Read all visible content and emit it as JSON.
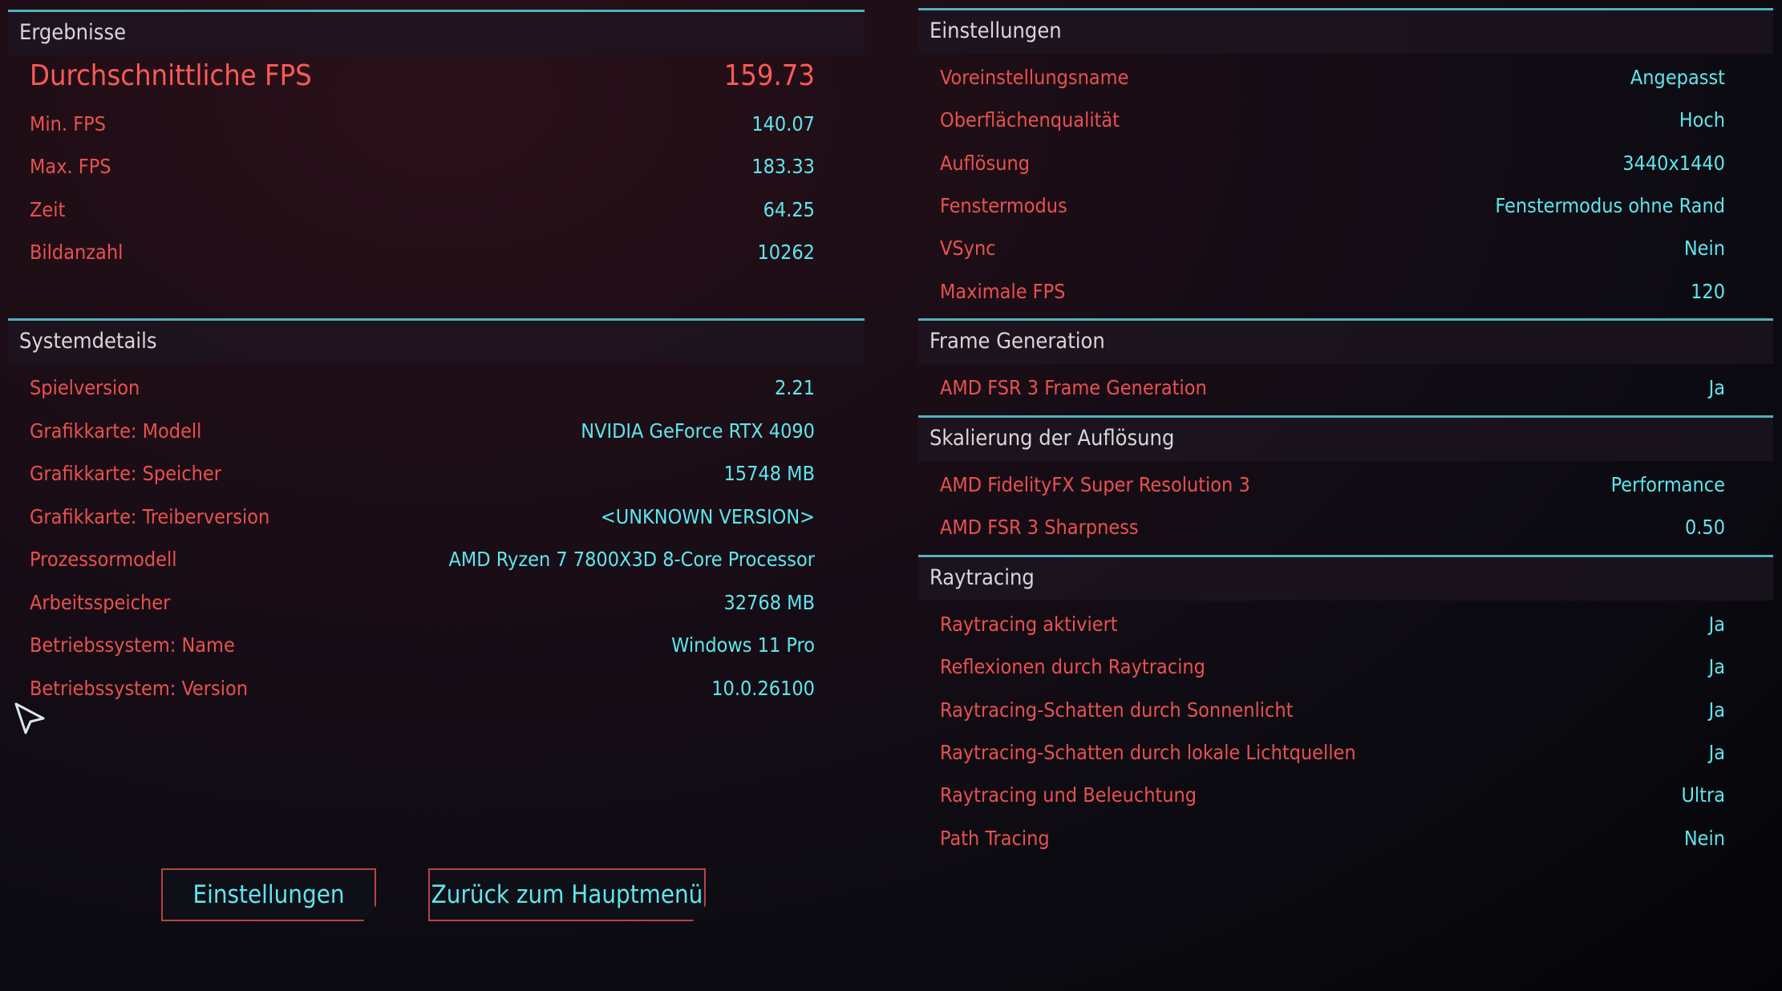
{
  "colors": {
    "label": "#e8514f",
    "value": "#5ee6ec",
    "accent_line": "#4fb3bd",
    "highlight": "#ff5a55"
  },
  "left": [
    {
      "title": "Ergebnisse",
      "big": {
        "label": "Durchschnittliche FPS",
        "value": "159.73"
      },
      "rows": [
        {
          "label": "Min. FPS",
          "value": "140.07"
        },
        {
          "label": "Max. FPS",
          "value": "183.33"
        },
        {
          "label": "Zeit",
          "value": "64.25"
        },
        {
          "label": "Bildanzahl",
          "value": "10262"
        }
      ]
    },
    {
      "title": "Systemdetails",
      "rows": [
        {
          "label": "Spielversion",
          "value": "2.21"
        },
        {
          "label": "Grafikkarte: Modell",
          "value": "NVIDIA GeForce RTX 4090"
        },
        {
          "label": "Grafikkarte: Speicher",
          "value": "15748 MB"
        },
        {
          "label": "Grafikkarte: Treiberversion",
          "value": "<UNKNOWN VERSION>"
        },
        {
          "label": "Prozessormodell",
          "value": "AMD Ryzen 7 7800X3D 8-Core Processor"
        },
        {
          "label": "Arbeitsspeicher",
          "value": "32768 MB"
        },
        {
          "label": "Betriebssystem: Name",
          "value": "Windows 11 Pro"
        },
        {
          "label": "Betriebssystem: Version",
          "value": "10.0.26100"
        }
      ]
    }
  ],
  "right": [
    {
      "title": "Einstellungen",
      "rows": [
        {
          "label": "Voreinstellungsname",
          "value": "Angepasst"
        },
        {
          "label": "Oberflächenqualität",
          "value": "Hoch"
        },
        {
          "label": "Auflösung",
          "value": "3440x1440"
        },
        {
          "label": "Fenstermodus",
          "value": "Fenstermodus ohne Rand"
        },
        {
          "label": "VSync",
          "value": "Nein"
        },
        {
          "label": "Maximale FPS",
          "value": "120"
        }
      ]
    },
    {
      "title": "Frame Generation",
      "rows": [
        {
          "label": "AMD FSR 3 Frame Generation",
          "value": "Ja"
        }
      ]
    },
    {
      "title": "Skalierung der Auflösung",
      "rows": [
        {
          "label": "AMD FidelityFX Super Resolution 3",
          "value": "Performance"
        },
        {
          "label": "AMD FSR 3 Sharpness",
          "value": "0.50"
        }
      ]
    },
    {
      "title": "Raytracing",
      "rows": [
        {
          "label": "Raytracing aktiviert",
          "value": "Ja"
        },
        {
          "label": "Reflexionen durch Raytracing",
          "value": "Ja"
        },
        {
          "label": "Raytracing-Schatten durch Sonnenlicht",
          "value": "Ja"
        },
        {
          "label": "Raytracing-Schatten durch lokale Lichtquellen",
          "value": "Ja"
        },
        {
          "label": "Raytracing und Beleuchtung",
          "value": "Ultra"
        },
        {
          "label": "Path Tracing",
          "value": "Nein"
        }
      ]
    }
  ],
  "buttons": {
    "settings": "Einstellungen",
    "main_menu": "Zurück zum Hauptmenü"
  },
  "cursor_icon": "pointer-arrow-icon"
}
